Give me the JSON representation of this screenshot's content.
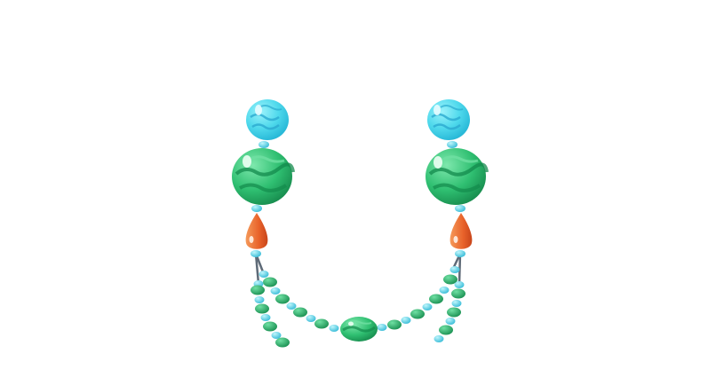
{
  "image": {
    "subject": "necklace-illustration",
    "colors": {
      "background": "#ffffff",
      "turquoise_bead": "#4fd9ec",
      "turquoise_stripe": "#2aa9cf",
      "green_bead": "#2fbf71",
      "green_dark": "#138a4c",
      "green_light": "#6fe0a3",
      "orange_drop": "#e8622a",
      "orange_light": "#f59a5a",
      "spacer_bead": "#5cd5ea",
      "cord": "#5f6b78"
    },
    "icons": [
      "turquoise-bead",
      "green-bead",
      "orange-drop-bead",
      "small-spacer-bead"
    ]
  }
}
